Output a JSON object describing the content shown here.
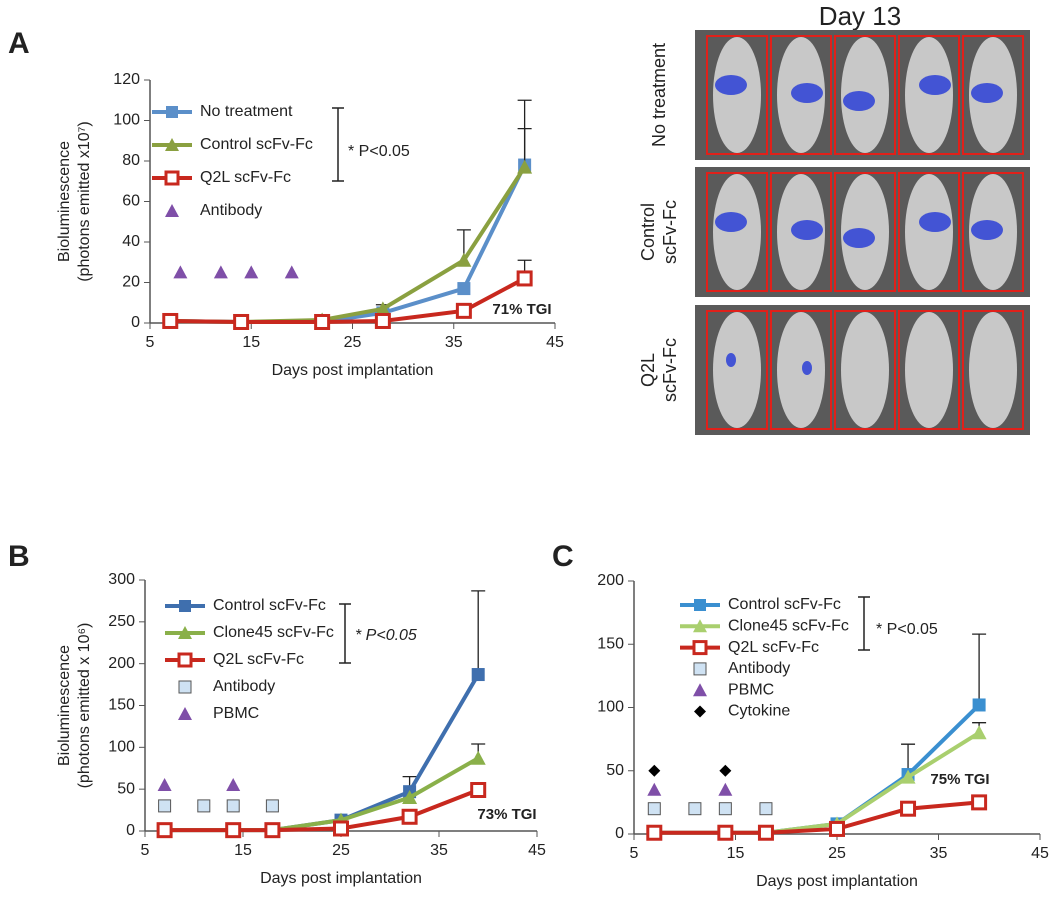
{
  "chart_data": [
    {
      "type": "line",
      "panel": "A",
      "xlabel": "Days post implantation",
      "ylabel": [
        "Bioluminescence",
        "(photons emitted x10⁷)"
      ],
      "xlim": [
        5,
        45
      ],
      "xticks": [
        5,
        15,
        25,
        35,
        45
      ],
      "ylim": [
        0,
        120
      ],
      "yticks": [
        0,
        20,
        40,
        60,
        80,
        100,
        120
      ],
      "annotations": [
        "* P<0.05",
        "71% TGI"
      ],
      "series": [
        {
          "name": "No treatment",
          "color": "#5b8fc9",
          "marker": "square",
          "line": true,
          "x": [
            7,
            14,
            22,
            28,
            36,
            42
          ],
          "values": [
            1,
            0.5,
            0.5,
            5,
            17,
            78
          ],
          "errors": [
            null,
            null,
            null,
            null,
            null,
            32
          ]
        },
        {
          "name": "Control scFv-Fc",
          "color": "#8aa040",
          "marker": "triangle",
          "line": true,
          "x": [
            7,
            14,
            22,
            28,
            36,
            42
          ],
          "values": [
            1,
            0.5,
            1.5,
            7,
            31,
            77
          ],
          "errors": [
            null,
            null,
            null,
            2,
            15,
            19
          ]
        },
        {
          "name": "Q2L scFv-Fc",
          "color": "#c8281e",
          "marker": "open-square",
          "line": true,
          "x": [
            7,
            14,
            22,
            28,
            36,
            42
          ],
          "values": [
            1,
            0.5,
            0.5,
            1,
            6,
            22
          ],
          "errors": [
            null,
            null,
            null,
            null,
            null,
            9
          ]
        },
        {
          "name": "Antibody",
          "color": "#7f4fa8",
          "marker": "triangle",
          "line": false,
          "x": [
            8,
            12,
            15,
            19
          ],
          "values": [
            25,
            25,
            25,
            25
          ]
        }
      ]
    },
    {
      "type": "line",
      "panel": "B",
      "xlabel": "Days post implantation",
      "ylabel": [
        "Bioluminescence",
        "(photons emitted x 10⁶)"
      ],
      "xlim": [
        5,
        45
      ],
      "xticks": [
        5,
        15,
        25,
        35,
        45
      ],
      "ylim": [
        0,
        300
      ],
      "yticks": [
        0,
        50,
        100,
        150,
        200,
        250,
        300
      ],
      "annotations": [
        "* P<0.05",
        "73% TGI"
      ],
      "series": [
        {
          "name": "Control scFv-Fc",
          "color": "#3f6fae",
          "marker": "square",
          "line": true,
          "x": [
            7,
            14,
            18,
            25,
            32,
            39
          ],
          "values": [
            1,
            1,
            1,
            13,
            47,
            187
          ],
          "errors": [
            null,
            null,
            null,
            null,
            18,
            100
          ]
        },
        {
          "name": "Clone45 scFv-Fc",
          "color": "#8ab04a",
          "marker": "triangle",
          "line": true,
          "x": [
            7,
            14,
            18,
            25,
            32,
            39
          ],
          "values": [
            1,
            1,
            1,
            13,
            40,
            87
          ],
          "errors": [
            null,
            null,
            null,
            null,
            null,
            17
          ]
        },
        {
          "name": "Q2L scFv-Fc",
          "color": "#c8281e",
          "marker": "open-square",
          "line": true,
          "x": [
            7,
            14,
            18,
            25,
            32,
            39
          ],
          "values": [
            1,
            1,
            1,
            3,
            17,
            49
          ]
        },
        {
          "name": "Antibody",
          "color": "#cfe2f3",
          "edgecolor": "#555555",
          "marker": "square",
          "line": false,
          "x": [
            7,
            11,
            14,
            18
          ],
          "values": [
            30,
            30,
            30,
            30
          ]
        },
        {
          "name": "PBMC",
          "color": "#7f4fa8",
          "marker": "triangle",
          "line": false,
          "x": [
            7,
            14
          ],
          "values": [
            55,
            55
          ]
        }
      ]
    },
    {
      "type": "line",
      "panel": "C",
      "xlabel": "Days post implantation",
      "xlim": [
        5,
        45
      ],
      "xticks": [
        5,
        15,
        25,
        35,
        45
      ],
      "ylim": [
        0,
        200
      ],
      "yticks": [
        0,
        50,
        100,
        150,
        200
      ],
      "annotations": [
        "* P<0.05",
        "75% TGI"
      ],
      "series": [
        {
          "name": "Control scFv-Fc",
          "color": "#3a8fd0",
          "marker": "square",
          "line": true,
          "x": [
            7,
            14,
            18,
            25,
            32,
            39
          ],
          "values": [
            1,
            1,
            1,
            8,
            47,
            102
          ],
          "errors": [
            null,
            null,
            null,
            null,
            24,
            56
          ]
        },
        {
          "name": "Clone45 scFv-Fc",
          "color": "#a9cf6e",
          "marker": "triangle",
          "line": true,
          "x": [
            7,
            14,
            18,
            25,
            32,
            39
          ],
          "values": [
            1,
            1,
            1,
            8,
            45,
            80
          ],
          "errors": [
            null,
            null,
            null,
            null,
            null,
            8
          ]
        },
        {
          "name": "Q2L scFv-Fc",
          "color": "#c8281e",
          "marker": "open-square",
          "line": true,
          "x": [
            7,
            14,
            18,
            25,
            32,
            39
          ],
          "values": [
            1,
            1,
            1,
            4,
            20,
            25
          ]
        },
        {
          "name": "Antibody",
          "color": "#cfe2f3",
          "edgecolor": "#555555",
          "marker": "square",
          "line": false,
          "x": [
            7,
            11,
            14,
            18
          ],
          "values": [
            20,
            20,
            20,
            20
          ]
        },
        {
          "name": "PBMC",
          "color": "#7f4fa8",
          "marker": "triangle",
          "line": false,
          "x": [
            7,
            14
          ],
          "values": [
            35,
            35
          ]
        },
        {
          "name": "Cytokine",
          "color": "#000000",
          "marker": "diamond",
          "line": false,
          "x": [
            7,
            14
          ],
          "values": [
            50,
            50
          ]
        }
      ]
    }
  ],
  "imaging": {
    "title": "Day 13",
    "rows": [
      [
        "No treatment"
      ],
      [
        "Control",
        "scFv-Fc"
      ],
      [
        "Q2L",
        "scFv-Fc"
      ]
    ]
  }
}
